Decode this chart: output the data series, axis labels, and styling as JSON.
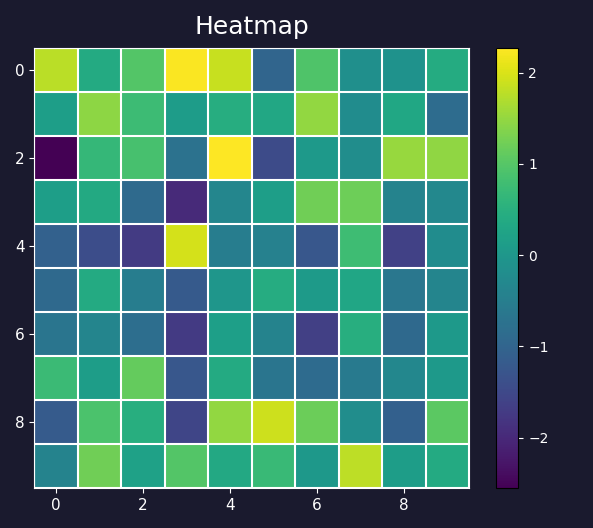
{
  "title": "Heatmap",
  "cmap": "viridis",
  "grid_color": "white",
  "grid_linewidth": 1.5,
  "title_fontsize": 18,
  "figsize": [
    5.93,
    5.28
  ],
  "dpi": 100,
  "seed": 0
}
